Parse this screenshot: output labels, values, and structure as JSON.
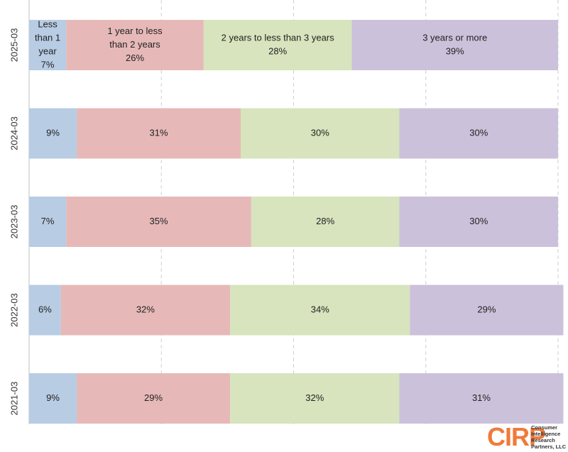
{
  "chart_data": {
    "type": "bar",
    "orientation": "horizontal",
    "stacked": true,
    "percent": true,
    "xlim": [
      0,
      100
    ],
    "grid": true,
    "categories": [
      "2025-03",
      "2024-03",
      "2023-03",
      "2022-03",
      "2021-03"
    ],
    "series": [
      {
        "name": "Less than 1 year",
        "color": "#b8cce4",
        "values": [
          7,
          9,
          7,
          6,
          9
        ]
      },
      {
        "name": "1 year to less than 2 years",
        "color": "#e6b9b8",
        "values": [
          26,
          31,
          35,
          32,
          29
        ]
      },
      {
        "name": "2 years to less than 3 years",
        "color": "#d7e4bd",
        "values": [
          28,
          30,
          28,
          34,
          32
        ]
      },
      {
        "name": "3 years or more",
        "color": "#ccc1da",
        "values": [
          39,
          30,
          30,
          29,
          31
        ]
      }
    ],
    "labels": [
      [
        [
          "Less",
          "than 1",
          "year",
          "7%"
        ],
        [
          "1 year to less",
          "than 2 years",
          "26%"
        ],
        [
          "2 years to less than 3 years",
          "28%"
        ],
        [
          "3 years or more",
          "39%"
        ]
      ],
      [
        [
          "9%"
        ],
        [
          "31%"
        ],
        [
          "30%"
        ],
        [
          "30%"
        ]
      ],
      [
        [
          "7%"
        ],
        [
          "35%"
        ],
        [
          "28%"
        ],
        [
          "30%"
        ]
      ],
      [
        [
          "6%"
        ],
        [
          "32%"
        ],
        [
          "34%"
        ],
        [
          "29%"
        ]
      ],
      [
        [
          "9%"
        ],
        [
          "29%"
        ],
        [
          "32%"
        ],
        [
          "31%"
        ]
      ]
    ]
  },
  "logo": {
    "mark": "CIRP",
    "lines": [
      "Consumer",
      "Intelligence",
      "Research",
      "Partners, LLC"
    ]
  }
}
